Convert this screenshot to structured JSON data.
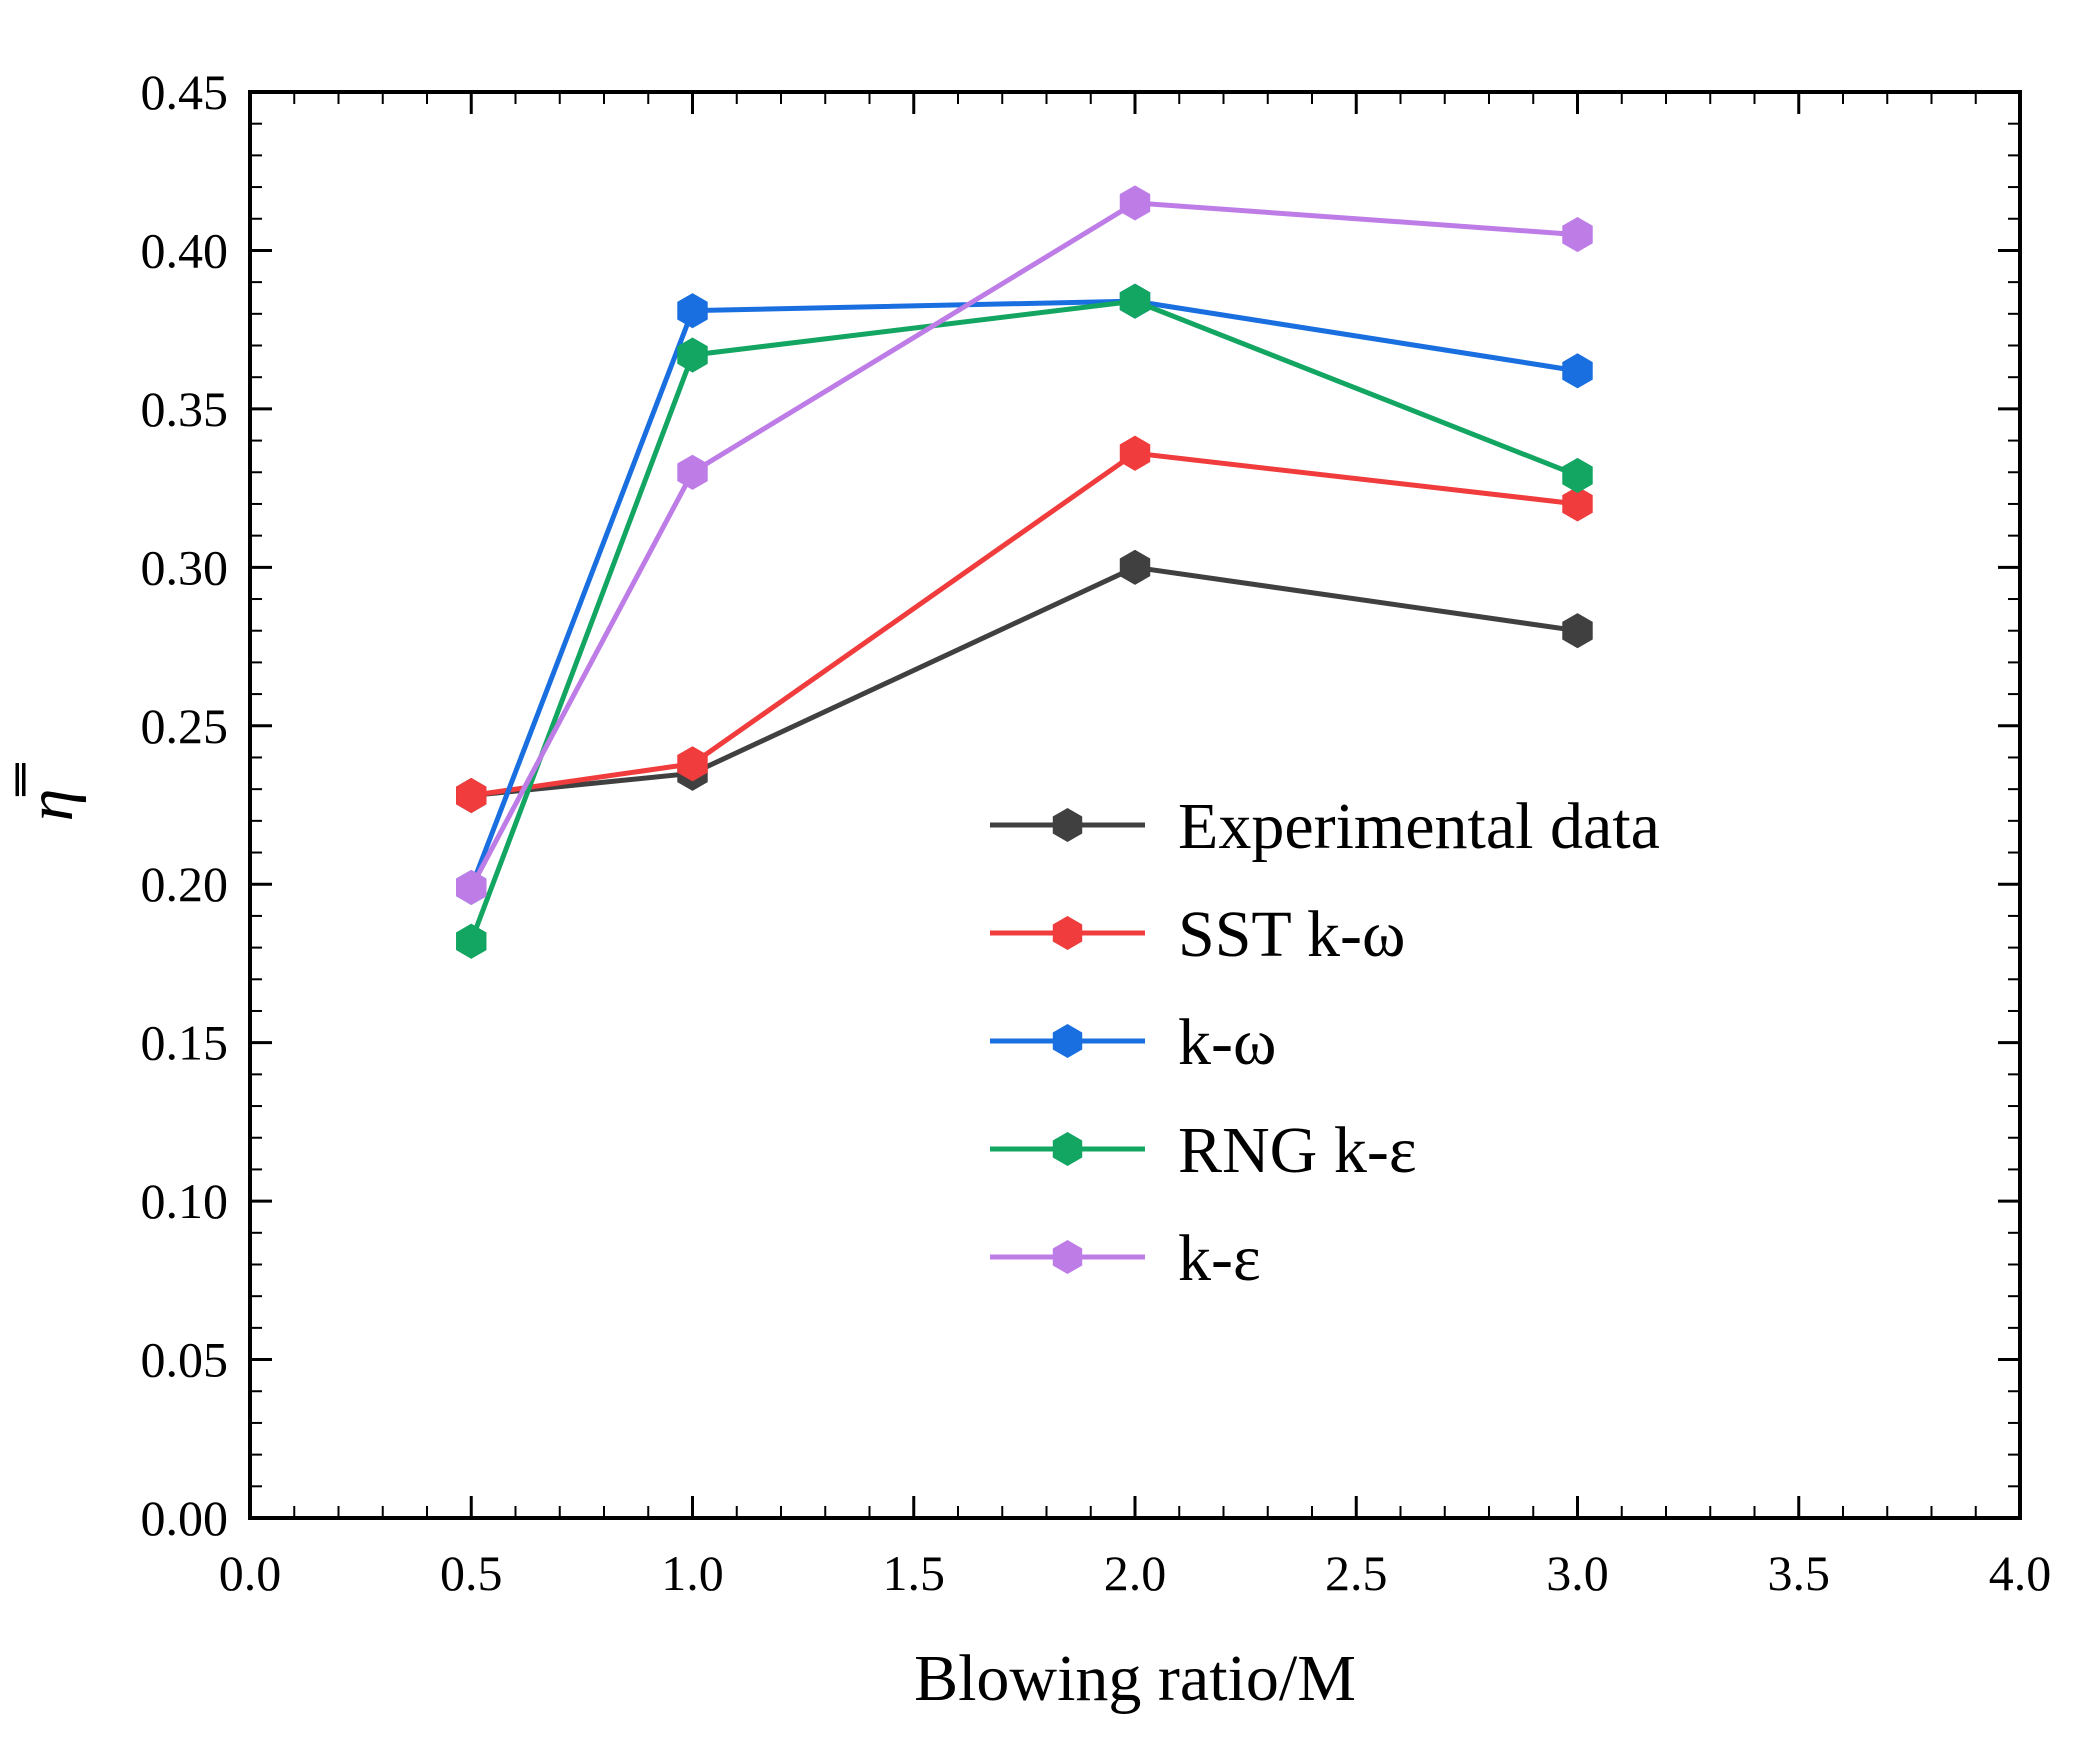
{
  "chart_data": {
    "type": "line",
    "xlabel": "Blowing ratio/M",
    "ylabel": "η̿",
    "xlim": [
      0.0,
      4.0
    ],
    "ylim": [
      0.0,
      0.45
    ],
    "x_ticks": [
      "0.0",
      "0.5",
      "1.0",
      "1.5",
      "2.0",
      "2.5",
      "3.0",
      "3.5",
      "4.0"
    ],
    "y_ticks": [
      "0.00",
      "0.05",
      "0.10",
      "0.15",
      "0.20",
      "0.25",
      "0.30",
      "0.35",
      "0.40",
      "0.45"
    ],
    "grid": false,
    "legend_position": "right-center",
    "marker": "hexagon",
    "series": [
      {
        "name": "Experimental data",
        "color": "#404040",
        "x": [
          0.5,
          1.0,
          2.0,
          3.0
        ],
        "values": [
          0.228,
          0.235,
          0.3,
          0.28
        ]
      },
      {
        "name": "SST k-ω",
        "color": "#f03c3c",
        "x": [
          0.5,
          1.0,
          2.0,
          3.0
        ],
        "values": [
          0.228,
          0.238,
          0.336,
          0.32
        ]
      },
      {
        "name": "k-ω",
        "color": "#1a6fe0",
        "x": [
          0.5,
          1.0,
          2.0,
          3.0
        ],
        "values": [
          0.199,
          0.381,
          0.384,
          0.362
        ]
      },
      {
        "name": "RNG k-ε",
        "color": "#13a562",
        "x": [
          0.5,
          1.0,
          2.0,
          3.0
        ],
        "values": [
          0.182,
          0.367,
          0.384,
          0.329
        ]
      },
      {
        "name": "k-ε",
        "color": "#be7de6",
        "x": [
          0.5,
          1.0,
          2.0,
          3.0
        ],
        "values": [
          0.199,
          0.33,
          0.415,
          0.405
        ]
      }
    ]
  }
}
